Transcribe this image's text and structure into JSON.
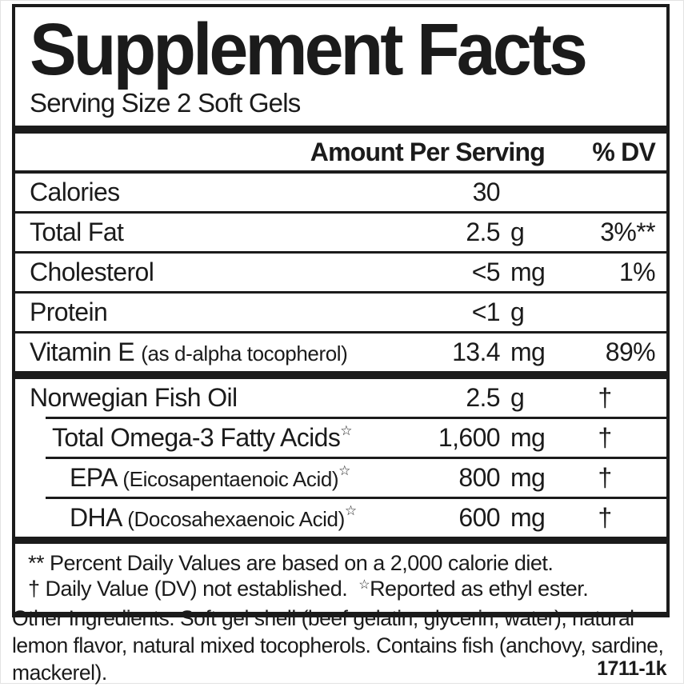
{
  "label": {
    "title": "Supplement Facts",
    "serving_size": "Serving Size 2 Soft Gels",
    "columns": {
      "amount": "Amount Per Serving",
      "dv": "% DV"
    },
    "rows": [
      {
        "name": "Calories",
        "note": "",
        "star": "",
        "amount": "30",
        "unit": "",
        "dv": ""
      },
      {
        "name": "Total Fat",
        "note": "",
        "star": "",
        "amount": "2.5",
        "unit": "g",
        "dv": "3%**"
      },
      {
        "name": "Cholesterol",
        "note": "",
        "star": "",
        "amount": "<5",
        "unit": "mg",
        "dv": "1%"
      },
      {
        "name": "Protein",
        "note": "",
        "star": "",
        "amount": "<1",
        "unit": "g",
        "dv": ""
      },
      {
        "name": "Vitamin E",
        "note": "(as d-alpha tocopherol)",
        "star": "",
        "amount": "13.4",
        "unit": "mg",
        "dv": "89%"
      },
      {
        "name": "Norwegian Fish Oil",
        "note": "",
        "star": "",
        "amount": "2.5",
        "unit": "g",
        "dv": "†"
      },
      {
        "name": "Total Omega-3 Fatty Acids",
        "note": "",
        "star": "☆",
        "amount": "1,600",
        "unit": "mg",
        "dv": "†"
      },
      {
        "name": "EPA",
        "note": "(Eicosapentaenoic Acid)",
        "star": "☆",
        "amount": "800",
        "unit": "mg",
        "dv": "†"
      },
      {
        "name": "DHA",
        "note": "(Docosahexaenoic Acid)",
        "star": "☆",
        "amount": "600",
        "unit": "mg",
        "dv": "†"
      }
    ],
    "footnotes": {
      "line1": "** Percent Daily Values are based on a 2,000 calorie diet.",
      "line2_part1": "† Daily Value (DV) not established.",
      "line2_star": "☆",
      "line2_part2": "Reported as ethyl ester."
    },
    "other_ingredients": "Other Ingredients: Soft gel shell (beef gelatin, glycerin, water), natural lemon flavor, natural mixed tocopherols. Contains fish (anchovy, sardine, mackerel).",
    "code": "1711-1k",
    "ink_color": "#1b1b1b"
  }
}
